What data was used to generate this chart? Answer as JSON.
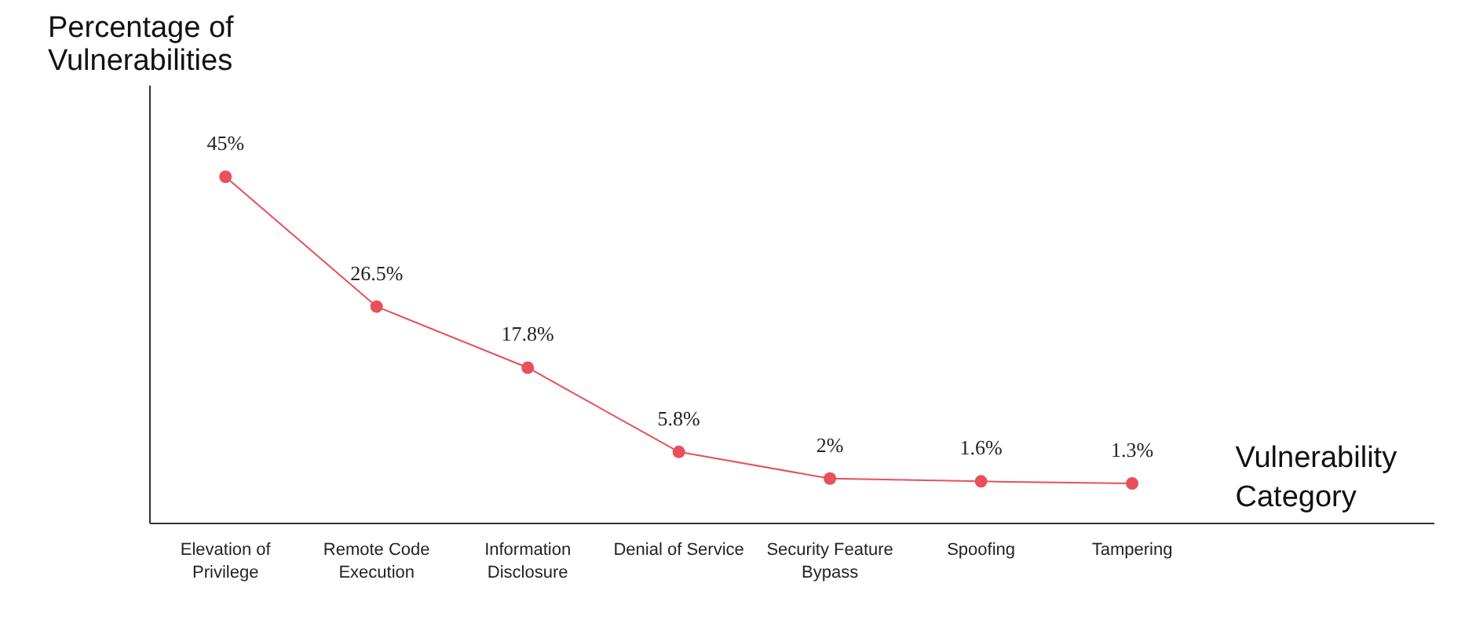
{
  "chart_data": {
    "type": "line",
    "xlabel": "Vulnerability\nCategory",
    "ylabel": "Percentage of\nVulnerabilities",
    "categories": [
      "Elevation of\nPrivilege",
      "Remote Code\nExecution",
      "Information\nDisclosure",
      "Denial of Service",
      "Security Feature\nBypass",
      "Spoofing",
      "Tampering"
    ],
    "series": [
      {
        "color": "#e8505b",
        "values": [
          45,
          26.5,
          17.8,
          5.8,
          2,
          1.6,
          1.3
        ],
        "value_labels": [
          "45%",
          "26.5%",
          "17.8%",
          "5.8%",
          "2%",
          "1.6%",
          "1.3%"
        ]
      }
    ],
    "ylim": [
      -4.4,
      58
    ],
    "marker": "circle",
    "line_style": "solid",
    "grid": false
  }
}
